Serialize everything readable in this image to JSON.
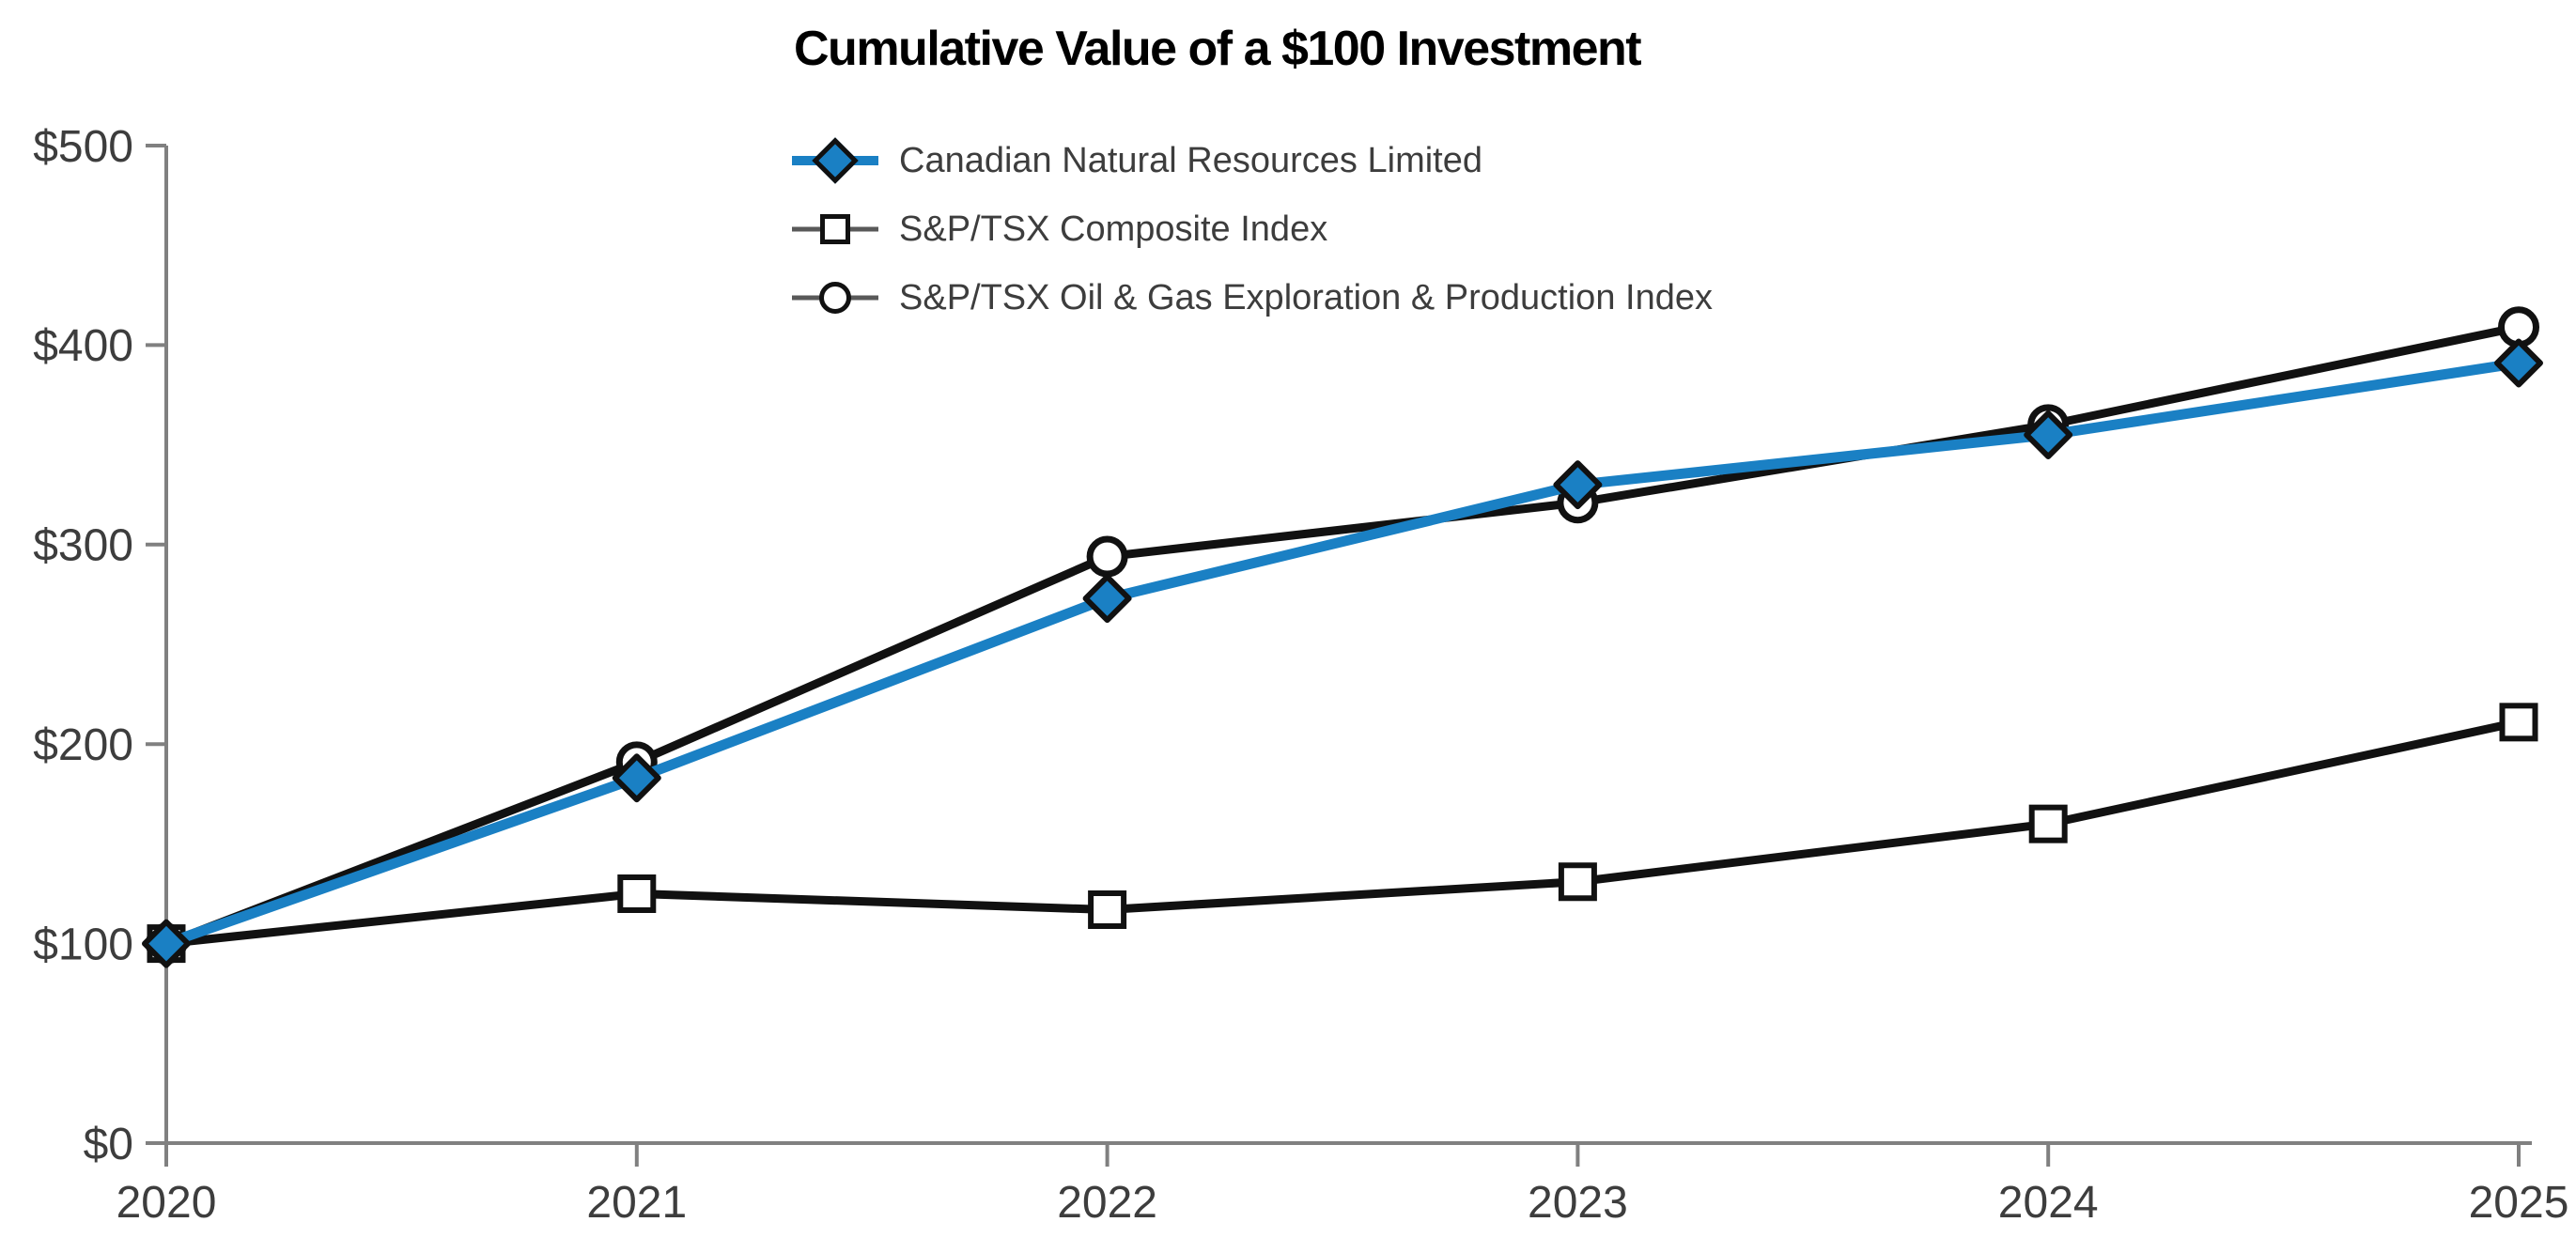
{
  "title": "Cumulative Value of a $100 Investment",
  "colors": {
    "accent_blue": "#1a80c4",
    "series_black": "#111111",
    "axis_gray": "#808080",
    "text_dark": "#3d3d3d",
    "title_black": "#000000",
    "legend_rule_gray": "#595959",
    "marker_fill_white": "#ffffff"
  },
  "chart_data": {
    "type": "line",
    "categories": [
      "2020",
      "2021",
      "2022",
      "2023",
      "2024",
      "2025"
    ],
    "series": [
      {
        "name": "Canadian Natural Resources Limited",
        "marker": "diamond",
        "values": [
          100,
          183,
          273,
          330,
          355,
          391
        ]
      },
      {
        "name": "S&P/TSX Composite Index",
        "marker": "square",
        "values": [
          100,
          125,
          117,
          131,
          160,
          211
        ]
      },
      {
        "name": "S&P/TSX Oil & Gas Exploration & Production Index",
        "marker": "circle",
        "values": [
          100,
          191,
          294,
          321,
          360,
          409
        ]
      }
    ],
    "title": "Cumulative Value of a $100 Investment",
    "xlabel": "",
    "ylabel": "",
    "ylim": [
      0,
      500
    ],
    "y_tick_labels": [
      "$0",
      "$100",
      "$200",
      "$300",
      "$400",
      "$500"
    ],
    "grid": false,
    "legend_position": "top-left"
  }
}
